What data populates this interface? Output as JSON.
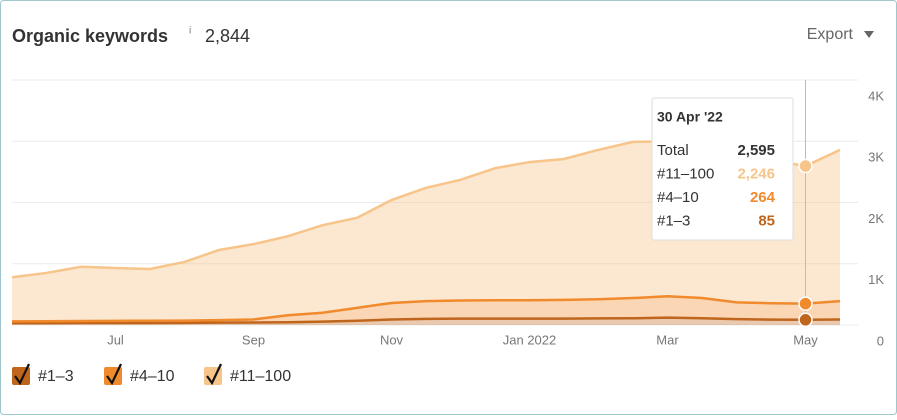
{
  "header": {
    "title": "Organic keywords",
    "info": "i",
    "count": "2,844",
    "export": "Export"
  },
  "chart_data": {
    "type": "stacked_area",
    "categories": [
      null,
      null,
      null,
      "Jul",
      null,
      null,
      null,
      "Sep",
      null,
      null,
      null,
      "Nov",
      null,
      null,
      null,
      "Jan 2022",
      null,
      null,
      null,
      "Mar",
      null,
      null,
      null,
      "May",
      null
    ],
    "series": [
      {
        "name": "#1–3",
        "color": "#c0661c",
        "values": [
          30,
          30,
          32,
          33,
          33,
          35,
          38,
          40,
          45,
          55,
          70,
          90,
          100,
          105,
          105,
          105,
          105,
          108,
          110,
          120,
          110,
          95,
          88,
          85,
          90
        ]
      },
      {
        "name": "#4–10",
        "color": "#f08a2c",
        "values": [
          30,
          32,
          33,
          35,
          37,
          37,
          42,
          50,
          115,
          145,
          210,
          270,
          290,
          295,
          300,
          300,
          305,
          312,
          330,
          350,
          330,
          275,
          267,
          264,
          300
        ]
      },
      {
        "name": "#11–100",
        "color": "#f7c48a",
        "values": [
          720,
          788,
          885,
          862,
          845,
          958,
          1145,
          1230,
          1290,
          1430,
          1470,
          1680,
          1850,
          1970,
          2155,
          2255,
          2300,
          2440,
          2550,
          2530,
          2450,
          2405,
          2340,
          2246,
          2470
        ]
      }
    ],
    "ylim": [
      0,
      4000
    ],
    "yticks": [
      0,
      {
        "value": 1000,
        "label": "1K"
      },
      {
        "value": 2000,
        "label": "2K"
      },
      {
        "value": 3000,
        "label": "3K"
      },
      {
        "value": 4000,
        "label": "4K"
      }
    ],
    "grid": true,
    "tooltip": {
      "date": "30 Apr '22",
      "index": 23,
      "rows": [
        {
          "label": "Total",
          "value": "2,595"
        },
        {
          "label": "#11–100",
          "value": "2,246"
        },
        {
          "label": "#4–10",
          "value": "264"
        },
        {
          "label": "#1–3",
          "value": "85"
        }
      ]
    }
  }
}
